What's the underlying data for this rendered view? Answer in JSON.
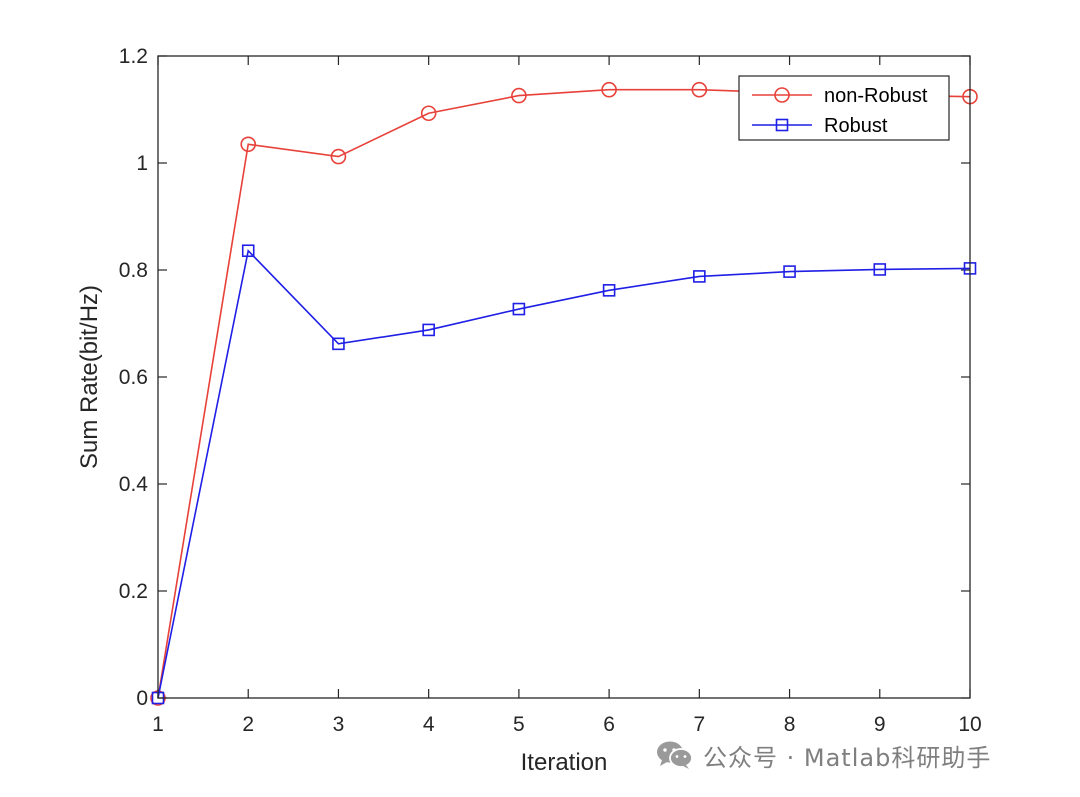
{
  "chart_data": {
    "type": "line",
    "xlabel": "Iteration",
    "ylabel": "Sum Rate(bit/Hz)",
    "xlim": [
      1,
      10
    ],
    "ylim": [
      0,
      1.2
    ],
    "x_ticks": [
      "1",
      "2",
      "3",
      "4",
      "5",
      "6",
      "7",
      "8",
      "9",
      "10"
    ],
    "y_ticks": [
      "0",
      "0.2",
      "0.4",
      "0.6",
      "0.8",
      "1",
      "1.2"
    ],
    "grid": false,
    "legend_position": "top-right",
    "x": [
      1,
      2,
      3,
      4,
      5,
      6,
      7,
      8,
      9,
      10
    ],
    "series": [
      {
        "name": "non-Robust",
        "marker": "circle",
        "color": "#e8413a",
        "values": [
          0,
          1.035,
          1.012,
          1.093,
          1.126,
          1.137,
          1.137,
          1.131,
          1.127,
          1.124
        ]
      },
      {
        "name": "Robust",
        "marker": "square",
        "color": "#1f1fe6",
        "values": [
          0,
          0.836,
          0.662,
          0.688,
          0.727,
          0.762,
          0.788,
          0.797,
          0.801,
          0.803
        ]
      }
    ]
  },
  "watermark": {
    "icon": "wechat-icon",
    "text": "公众号 · Matlab科研助手"
  }
}
